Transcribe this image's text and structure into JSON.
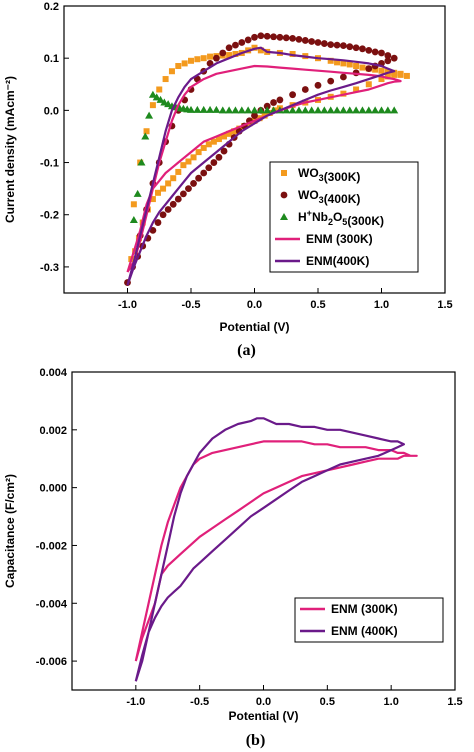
{
  "chart_data": [
    {
      "type": "line",
      "panel_label": "(a)",
      "xlabel": "Potential (V)",
      "ylabel": "Current density (mAcm⁻²)",
      "xlim": [
        -1.5,
        1.5
      ],
      "ylim": [
        -0.35,
        0.2
      ],
      "xticks": [
        -1.0,
        -0.5,
        0.0,
        0.5,
        1.0,
        1.5
      ],
      "xtick_labels": [
        "-1.0",
        "-0.5",
        "0.0",
        "0.5",
        "1.0",
        "1.5"
      ],
      "yticks": [
        -0.3,
        -0.2,
        -0.1,
        0.0,
        0.1,
        0.2
      ],
      "ytick_labels": [
        "-0.3",
        "-0.2",
        "-0.1",
        "0.0",
        "0.1",
        "0.2"
      ],
      "legend_position": "bottom-right",
      "series": [
        {
          "name": "WO3(300K)",
          "legend_label": {
            "base": "WO",
            "sub": "3",
            "rest": "(300K)"
          },
          "marker": "square",
          "color": "#f39a1e",
          "x": [
            -0.97,
            -0.94,
            -0.91,
            -0.88,
            -0.84,
            -0.8,
            -0.76,
            -0.72,
            -0.68,
            -0.64,
            -0.6,
            -0.56,
            -0.52,
            -0.48,
            -0.44,
            -0.4,
            -0.36,
            -0.32,
            -0.28,
            -0.24,
            -0.2,
            -0.16,
            -0.12,
            -0.08,
            -0.04,
            0.0,
            0.04,
            0.08,
            0.12,
            0.16,
            0.2,
            0.3,
            0.4,
            0.5,
            0.6,
            0.7,
            0.8,
            0.9,
            1.0,
            1.05,
            1.1,
            1.15,
            1.2,
            1.15,
            1.1,
            1.05,
            1.0,
            0.95,
            0.9,
            0.85,
            0.8,
            0.75,
            0.7,
            0.65,
            0.6,
            0.5,
            0.4,
            0.3,
            0.2,
            0.1,
            0.05,
            0.0,
            -0.05,
            -0.1,
            -0.15,
            -0.2,
            -0.25,
            -0.3,
            -0.35,
            -0.4,
            -0.45,
            -0.5,
            -0.55,
            -0.6,
            -0.65,
            -0.7,
            -0.75,
            -0.8,
            -0.85,
            -0.9,
            -0.95
          ],
          "y": [
            -0.285,
            -0.27,
            -0.245,
            -0.215,
            -0.19,
            -0.17,
            -0.158,
            -0.15,
            -0.14,
            -0.13,
            -0.118,
            -0.105,
            -0.098,
            -0.09,
            -0.08,
            -0.072,
            -0.065,
            -0.06,
            -0.055,
            -0.05,
            -0.045,
            -0.04,
            -0.035,
            -0.03,
            -0.025,
            -0.02,
            -0.015,
            -0.01,
            -0.005,
            0.0,
            0.004,
            0.01,
            0.015,
            0.02,
            0.026,
            0.032,
            0.04,
            0.05,
            0.06,
            0.065,
            0.068,
            0.068,
            0.066,
            0.07,
            0.072,
            0.074,
            0.076,
            0.078,
            0.08,
            0.082,
            0.085,
            0.088,
            0.09,
            0.092,
            0.095,
            0.1,
            0.104,
            0.108,
            0.11,
            0.112,
            0.115,
            0.12,
            0.115,
            0.11,
            0.108,
            0.106,
            0.105,
            0.104,
            0.103,
            0.1,
            0.098,
            0.095,
            0.09,
            0.085,
            0.075,
            0.06,
            0.04,
            0.01,
            -0.04,
            -0.1,
            -0.18
          ]
        },
        {
          "name": "WO3(400K)",
          "legend_label": {
            "base": "WO",
            "sub": "3",
            "rest": "(400K)"
          },
          "marker": "circle",
          "color": "#7b1010",
          "x": [
            -1.0,
            -0.96,
            -0.92,
            -0.88,
            -0.84,
            -0.8,
            -0.76,
            -0.72,
            -0.68,
            -0.64,
            -0.6,
            -0.56,
            -0.52,
            -0.48,
            -0.44,
            -0.4,
            -0.36,
            -0.32,
            -0.28,
            -0.24,
            -0.2,
            -0.16,
            -0.12,
            -0.08,
            -0.04,
            0.0,
            0.05,
            0.1,
            0.15,
            0.2,
            0.3,
            0.4,
            0.5,
            0.6,
            0.7,
            0.8,
            0.9,
            0.95,
            1.0,
            1.05,
            1.1,
            1.05,
            1.0,
            0.95,
            0.9,
            0.85,
            0.8,
            0.75,
            0.7,
            0.65,
            0.6,
            0.55,
            0.5,
            0.45,
            0.4,
            0.35,
            0.3,
            0.25,
            0.2,
            0.15,
            0.1,
            0.05,
            0.0,
            -0.05,
            -0.1,
            -0.15,
            -0.2,
            -0.25,
            -0.3,
            -0.35,
            -0.4,
            -0.45,
            -0.5,
            -0.55,
            -0.6,
            -0.65,
            -0.7,
            -0.75,
            -0.8,
            -0.85,
            -0.9
          ],
          "y": [
            -0.33,
            -0.3,
            -0.28,
            -0.26,
            -0.245,
            -0.23,
            -0.215,
            -0.2,
            -0.19,
            -0.18,
            -0.17,
            -0.16,
            -0.15,
            -0.14,
            -0.13,
            -0.12,
            -0.11,
            -0.1,
            -0.09,
            -0.078,
            -0.065,
            -0.052,
            -0.04,
            -0.03,
            -0.02,
            -0.01,
            0.0,
            0.008,
            0.015,
            0.02,
            0.03,
            0.04,
            0.048,
            0.056,
            0.064,
            0.072,
            0.08,
            0.085,
            0.09,
            0.095,
            0.1,
            0.105,
            0.11,
            0.112,
            0.115,
            0.118,
            0.12,
            0.122,
            0.124,
            0.125,
            0.126,
            0.128,
            0.13,
            0.132,
            0.134,
            0.136,
            0.138,
            0.139,
            0.14,
            0.141,
            0.142,
            0.143,
            0.14,
            0.135,
            0.13,
            0.125,
            0.12,
            0.11,
            0.1,
            0.09,
            0.075,
            0.06,
            0.04,
            0.02,
            0.0,
            -0.03,
            -0.06,
            -0.1,
            -0.14,
            -0.19,
            -0.24
          ]
        },
        {
          "name": "H+Nb2O5(300K)",
          "legend_label": {
            "base": "H",
            "sup": "+",
            "mid": "Nb",
            "sub": "2",
            "mid2": "O",
            "sub2": "5",
            "rest": "(300K)"
          },
          "marker": "triangle",
          "color": "#1e8a1e",
          "x": [
            -0.95,
            -0.92,
            -0.89,
            -0.86,
            -0.83,
            -0.8,
            -0.77,
            -0.74,
            -0.71,
            -0.68,
            -0.65,
            -0.62,
            -0.59,
            -0.56,
            -0.53,
            -0.5,
            -0.45,
            -0.4,
            -0.35,
            -0.3,
            -0.25,
            -0.2,
            -0.15,
            -0.1,
            -0.05,
            0.0,
            0.05,
            0.1,
            0.15,
            0.2,
            0.25,
            0.3,
            0.35,
            0.4,
            0.45,
            0.5,
            0.55,
            0.6,
            0.65,
            0.7,
            0.75,
            0.8,
            0.85,
            0.9,
            0.95,
            1.0,
            1.05,
            1.1
          ],
          "y": [
            -0.21,
            -0.16,
            -0.1,
            -0.05,
            -0.01,
            0.03,
            0.025,
            0.02,
            0.015,
            0.012,
            0.008,
            0.006,
            0.004,
            0.003,
            0.002,
            0.001,
            0.001,
            0.001,
            0.001,
            0.001,
            0.0,
            0.0,
            0.0,
            0.0,
            0.0,
            0.0,
            0.0,
            0.0,
            0.0,
            0.0,
            0.0,
            0.0,
            0.0,
            0.0,
            0.0,
            0.0,
            0.0,
            0.0,
            0.0,
            0.0,
            0.0,
            0.0,
            0.0,
            0.0,
            0.0,
            0.0,
            0.0,
            0.0
          ]
        },
        {
          "name": "ENM (300K)",
          "legend_label": {
            "base": "ENM (300K)"
          },
          "line": true,
          "color": "#e0207a",
          "x": [
            -1.0,
            -0.95,
            -0.9,
            -0.85,
            -0.8,
            -0.75,
            -0.7,
            -0.65,
            -0.6,
            -0.55,
            -0.5,
            -0.45,
            -0.4,
            -0.3,
            -0.2,
            -0.1,
            0.0,
            0.1,
            0.2,
            0.3,
            0.4,
            0.5,
            0.6,
            0.7,
            0.8,
            0.9,
            1.0,
            1.05,
            1.1,
            1.15,
            1.1,
            1.05,
            1.0,
            0.9,
            0.8,
            0.7,
            0.6,
            0.5,
            0.4,
            0.3,
            0.2,
            0.1,
            0.0,
            -0.1,
            -0.2,
            -0.3,
            -0.4,
            -0.5,
            -0.55,
            -0.6,
            -0.65,
            -0.7,
            -0.75,
            -0.8,
            -0.85,
            -0.9,
            -0.95,
            -1.0
          ],
          "y": [
            -0.31,
            -0.27,
            -0.23,
            -0.18,
            -0.15,
            -0.135,
            -0.12,
            -0.11,
            -0.1,
            -0.09,
            -0.08,
            -0.07,
            -0.06,
            -0.05,
            -0.04,
            -0.03,
            -0.02,
            -0.01,
            0.0,
            0.008,
            0.015,
            0.02,
            0.025,
            0.03,
            0.035,
            0.04,
            0.048,
            0.052,
            0.055,
            0.056,
            0.06,
            0.062,
            0.065,
            0.068,
            0.07,
            0.072,
            0.074,
            0.076,
            0.078,
            0.08,
            0.082,
            0.084,
            0.085,
            0.08,
            0.075,
            0.07,
            0.06,
            0.045,
            0.03,
            0.01,
            -0.02,
            -0.06,
            -0.1,
            -0.15,
            -0.2,
            -0.25,
            -0.29,
            -0.31
          ]
        },
        {
          "name": "ENM(400K)",
          "legend_label": {
            "base": "ENM(400K)"
          },
          "line": true,
          "color": "#6a1a8a",
          "x": [
            -1.0,
            -0.95,
            -0.9,
            -0.85,
            -0.8,
            -0.75,
            -0.7,
            -0.65,
            -0.6,
            -0.55,
            -0.5,
            -0.4,
            -0.3,
            -0.2,
            -0.1,
            0.0,
            0.1,
            0.2,
            0.3,
            0.4,
            0.5,
            0.6,
            0.7,
            0.8,
            0.9,
            1.0,
            1.05,
            1.1,
            1.05,
            1.0,
            0.9,
            0.8,
            0.7,
            0.6,
            0.5,
            0.4,
            0.3,
            0.2,
            0.1,
            0.05,
            0.0,
            -0.1,
            -0.2,
            -0.3,
            -0.4,
            -0.5,
            -0.55,
            -0.6,
            -0.65,
            -0.7,
            -0.75,
            -0.8,
            -0.85,
            -0.9,
            -0.95,
            -1.0
          ],
          "y": [
            -0.335,
            -0.3,
            -0.27,
            -0.24,
            -0.215,
            -0.195,
            -0.18,
            -0.165,
            -0.15,
            -0.135,
            -0.12,
            -0.1,
            -0.08,
            -0.06,
            -0.04,
            -0.025,
            -0.01,
            0.0,
            0.01,
            0.02,
            0.03,
            0.038,
            0.045,
            0.052,
            0.06,
            0.068,
            0.072,
            0.075,
            0.08,
            0.085,
            0.09,
            0.093,
            0.096,
            0.098,
            0.1,
            0.103,
            0.106,
            0.11,
            0.112,
            0.12,
            0.118,
            0.11,
            0.1,
            0.09,
            0.075,
            0.06,
            0.045,
            0.025,
            0.0,
            -0.04,
            -0.09,
            -0.14,
            -0.19,
            -0.24,
            -0.29,
            -0.335
          ]
        }
      ]
    },
    {
      "type": "line",
      "panel_label": "(b)",
      "xlabel": "Potential (V)",
      "ylabel": "Capacitance (F/cm²)",
      "xlim": [
        -1.5,
        1.5
      ],
      "ylim": [
        -0.007,
        0.004
      ],
      "xticks": [
        -1.0,
        -0.5,
        0.0,
        0.5,
        1.0,
        1.5
      ],
      "xtick_labels": [
        "-1.0",
        "-0.5",
        "0.0",
        "0.5",
        "1.0",
        "1.5"
      ],
      "yticks": [
        -0.006,
        -0.004,
        -0.002,
        0.0,
        0.002,
        0.004
      ],
      "ytick_labels": [
        "-0.006",
        "-0.004",
        "-0.002",
        "0.000",
        "0.002",
        "0.004"
      ],
      "legend_position": "bottom-right",
      "series": [
        {
          "name": "ENM (300K)",
          "legend_label": {
            "base": "ENM (300K)"
          },
          "line": true,
          "color": "#e0207a",
          "x": [
            -1.0,
            -0.95,
            -0.9,
            -0.85,
            -0.8,
            -0.75,
            -0.7,
            -0.65,
            -0.6,
            -0.55,
            -0.5,
            -0.4,
            -0.3,
            -0.2,
            -0.1,
            0.0,
            0.1,
            0.2,
            0.3,
            0.4,
            0.5,
            0.6,
            0.7,
            0.8,
            0.9,
            1.0,
            1.05,
            1.1,
            1.15,
            1.2,
            1.15,
            1.1,
            1.05,
            1.0,
            0.9,
            0.8,
            0.7,
            0.6,
            0.5,
            0.4,
            0.3,
            0.2,
            0.1,
            0.0,
            -0.1,
            -0.2,
            -0.3,
            -0.4,
            -0.5,
            -0.55,
            -0.6,
            -0.65,
            -0.7,
            -0.75,
            -0.8,
            -0.85,
            -0.9,
            -0.95,
            -1.0
          ],
          "y": [
            -0.006,
            -0.0052,
            -0.0046,
            -0.004,
            -0.003,
            -0.0027,
            -0.0025,
            -0.0023,
            -0.0021,
            -0.0019,
            -0.0017,
            -0.0014,
            -0.0011,
            -0.0008,
            -0.0005,
            -0.0002,
            0.0,
            0.0002,
            0.0004,
            0.0005,
            0.0006,
            0.0007,
            0.0008,
            0.0009,
            0.001,
            0.001,
            0.001,
            0.0011,
            0.0011,
            0.0011,
            0.0011,
            0.0012,
            0.0012,
            0.0013,
            0.0013,
            0.0014,
            0.0014,
            0.0014,
            0.0015,
            0.0015,
            0.0016,
            0.0016,
            0.0016,
            0.0016,
            0.0015,
            0.0014,
            0.0013,
            0.0012,
            0.001,
            0.0008,
            0.0004,
            0.0,
            -0.0006,
            -0.0012,
            -0.002,
            -0.003,
            -0.004,
            -0.005,
            -0.006
          ]
        },
        {
          "name": "ENM (400K)",
          "legend_label": {
            "base": "ENM (400K)"
          },
          "line": true,
          "color": "#6a1a8a",
          "x": [
            -1.0,
            -0.95,
            -0.9,
            -0.85,
            -0.8,
            -0.75,
            -0.7,
            -0.65,
            -0.6,
            -0.55,
            -0.5,
            -0.4,
            -0.3,
            -0.2,
            -0.1,
            0.0,
            0.1,
            0.2,
            0.3,
            0.4,
            0.5,
            0.6,
            0.7,
            0.8,
            0.9,
            1.0,
            1.05,
            1.1,
            1.05,
            1.0,
            0.9,
            0.8,
            0.7,
            0.6,
            0.5,
            0.4,
            0.3,
            0.2,
            0.1,
            0.05,
            0.0,
            -0.05,
            -0.1,
            -0.2,
            -0.3,
            -0.4,
            -0.5,
            -0.55,
            -0.6,
            -0.65,
            -0.7,
            -0.75,
            -0.8,
            -0.85,
            -0.9,
            -0.95,
            -1.0
          ],
          "y": [
            -0.0067,
            -0.0058,
            -0.005,
            -0.0045,
            -0.0041,
            -0.0038,
            -0.0036,
            -0.0034,
            -0.0031,
            -0.0028,
            -0.0026,
            -0.0022,
            -0.0018,
            -0.0014,
            -0.001,
            -0.0007,
            -0.0004,
            -0.0001,
            0.0002,
            0.0004,
            0.0006,
            0.0008,
            0.0009,
            0.001,
            0.0011,
            0.0013,
            0.0014,
            0.0015,
            0.0016,
            0.0016,
            0.0017,
            0.0018,
            0.0019,
            0.002,
            0.002,
            0.0021,
            0.0021,
            0.0022,
            0.0022,
            0.0023,
            0.0024,
            0.0024,
            0.0023,
            0.0022,
            0.002,
            0.0017,
            0.0012,
            0.0008,
            0.0004,
            -0.0002,
            -0.001,
            -0.002,
            -0.003,
            -0.004,
            -0.005,
            -0.006,
            -0.0067
          ]
        }
      ]
    }
  ]
}
